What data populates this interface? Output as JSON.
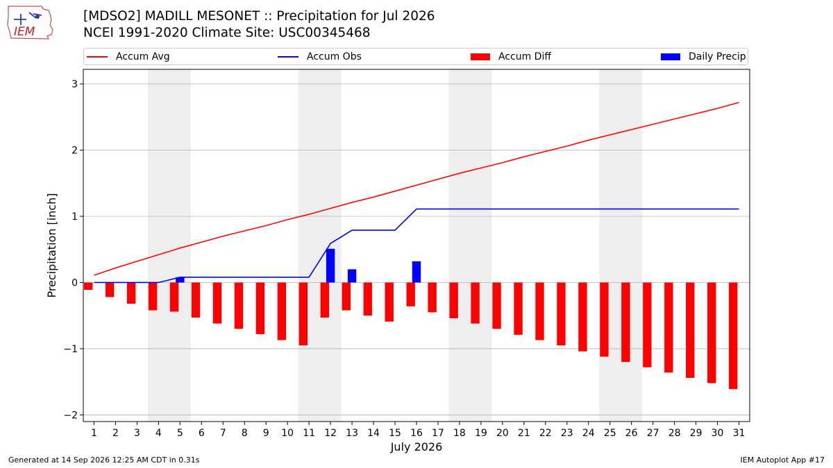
{
  "logo": {
    "text": "IEM"
  },
  "header": {
    "title_line1": "[MDSO2] MADILL MESONET :: Precipitation for Jul 2026",
    "title_line2": "NCEI 1991-2020 Climate Site: USC00345468"
  },
  "footer": {
    "left": "Generated at 14 Sep 2026 12:25 AM CDT in 0.31s",
    "right": "IEM Autoplot App #17"
  },
  "colors": {
    "avg": "#ff0000",
    "obs": "#0000ff",
    "diff": "#ff0000",
    "daily": "#0000ff",
    "weekend": "#eeeeee",
    "grid": "#b0b0b0"
  },
  "chart_data": {
    "type": "bar",
    "xlabel": "July 2026",
    "ylabel": "Precipitation [inch]",
    "ylim": [
      -2.1,
      3.22
    ],
    "yticks": [
      -2,
      -1,
      0,
      1,
      2,
      3
    ],
    "ytick_labels": [
      "−2",
      "−1",
      "0",
      "1",
      "2",
      "3"
    ],
    "grid": true,
    "legend_placement": "top",
    "x": [
      1,
      2,
      3,
      4,
      5,
      6,
      7,
      8,
      9,
      10,
      11,
      12,
      13,
      14,
      15,
      16,
      17,
      18,
      19,
      20,
      21,
      22,
      23,
      24,
      25,
      26,
      27,
      28,
      29,
      30,
      31
    ],
    "x_labels": [
      "1",
      "2",
      "3",
      "4",
      "5",
      "6",
      "7",
      "8",
      "9",
      "10",
      "11",
      "12",
      "13",
      "14",
      "15",
      "16",
      "17",
      "18",
      "19",
      "20",
      "21",
      "22",
      "23",
      "24",
      "25",
      "26",
      "27",
      "28",
      "29",
      "30",
      "31"
    ],
    "weekend_spans": [
      [
        4,
        5
      ],
      [
        11,
        12
      ],
      [
        18,
        19
      ],
      [
        25,
        26
      ]
    ],
    "series": [
      {
        "name": "Accum Avg",
        "type": "line",
        "values": [
          0.11,
          0.22,
          0.32,
          0.42,
          0.52,
          0.61,
          0.7,
          0.78,
          0.86,
          0.95,
          1.03,
          1.12,
          1.21,
          1.29,
          1.38,
          1.47,
          1.56,
          1.65,
          1.73,
          1.81,
          1.9,
          1.98,
          2.06,
          2.15,
          2.23,
          2.31,
          2.39,
          2.47,
          2.55,
          2.63,
          2.72
        ]
      },
      {
        "name": "Accum Obs",
        "type": "line",
        "values": [
          0.0,
          0.0,
          0.0,
          0.0,
          0.08,
          0.08,
          0.08,
          0.08,
          0.08,
          0.08,
          0.08,
          0.59,
          0.79,
          0.79,
          0.79,
          1.11,
          1.11,
          1.11,
          1.11,
          1.11,
          1.11,
          1.11,
          1.11,
          1.11,
          1.11,
          1.11,
          1.11,
          1.11,
          1.11,
          1.11,
          1.11
        ]
      },
      {
        "name": "Accum Diff",
        "type": "bar",
        "values": [
          -0.11,
          -0.22,
          -0.32,
          -0.42,
          -0.44,
          -0.53,
          -0.62,
          -0.7,
          -0.78,
          -0.87,
          -0.95,
          -0.53,
          -0.42,
          -0.5,
          -0.59,
          -0.36,
          -0.45,
          -0.54,
          -0.62,
          -0.7,
          -0.79,
          -0.87,
          -0.95,
          -1.04,
          -1.12,
          -1.2,
          -1.28,
          -1.36,
          -1.44,
          -1.52,
          -1.61
        ]
      },
      {
        "name": "Daily Precip",
        "type": "bar",
        "values": [
          0,
          0,
          0,
          0,
          0.08,
          0,
          0,
          0,
          0,
          0,
          0,
          0.51,
          0.2,
          0,
          0,
          0.32,
          0,
          0,
          0,
          0,
          0,
          0,
          0,
          0,
          0,
          0,
          0,
          0,
          0,
          0,
          0
        ]
      }
    ]
  }
}
